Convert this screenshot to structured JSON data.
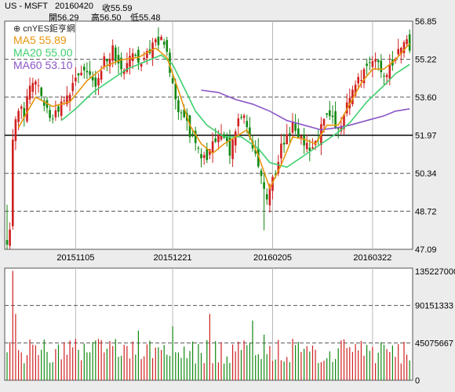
{
  "header": {
    "symbol": "US - MSFT",
    "date": "20160420",
    "close_label": "收55.59",
    "open_label": "開56.29",
    "high_label": "高56.50",
    "low_label": "低55.48"
  },
  "logo": "⊕ cnYES鉅亨網",
  "legend": [
    {
      "label": "MA5 55.89",
      "color": "#e8950c"
    },
    {
      "label": "MA20 55.00",
      "color": "#3ecf6e"
    },
    {
      "label": "MA60 53.10",
      "color": "#8a55c8"
    }
  ],
  "colors": {
    "up": "#d02020",
    "down": "#118811",
    "ma5": "#e8950c",
    "ma20": "#3ecf6e",
    "ma60": "#8a55c8"
  },
  "chart_data": [
    {
      "type": "candlestick",
      "title": "",
      "y_ticks": [
        "56.85",
        "55.22",
        "53.60",
        "51.97",
        "50.34",
        "48.72",
        "47.09"
      ],
      "ylim": [
        47.09,
        56.85
      ],
      "x_ticks": [
        "20151105",
        "20151221",
        "20160205",
        "20160322"
      ],
      "grid": true,
      "highlight_level": 51.97,
      "keypoints": {
        "close": [
          [
            0,
            47.2
          ],
          [
            1,
            47.9
          ],
          [
            2,
            51.8
          ],
          [
            3,
            52.6
          ],
          [
            4,
            53.2
          ],
          [
            6,
            52.9
          ],
          [
            8,
            54.0
          ],
          [
            10,
            54.3
          ],
          [
            12,
            53.6
          ],
          [
            14,
            53.2
          ],
          [
            16,
            52.6
          ],
          [
            19,
            53.3
          ],
          [
            22,
            53.9
          ],
          [
            25,
            54.6
          ],
          [
            28,
            54.8
          ],
          [
            31,
            54.0
          ],
          [
            34,
            55.2
          ],
          [
            37,
            55.6
          ],
          [
            40,
            54.7
          ],
          [
            43,
            55.4
          ],
          [
            46,
            55.1
          ],
          [
            49,
            55.4
          ],
          [
            52,
            55.9
          ],
          [
            54,
            56.0
          ],
          [
            56,
            55.4
          ],
          [
            58,
            54.2
          ],
          [
            60,
            53.1
          ],
          [
            62,
            52.7
          ],
          [
            64,
            52.1
          ],
          [
            66,
            51.6
          ],
          [
            68,
            51.2
          ],
          [
            70,
            50.8
          ],
          [
            72,
            51.5
          ],
          [
            74,
            52.1
          ],
          [
            76,
            51.8
          ],
          [
            78,
            51.2
          ],
          [
            80,
            52.3
          ],
          [
            82,
            52.9
          ],
          [
            84,
            52.4
          ],
          [
            86,
            51.6
          ],
          [
            88,
            50.5
          ],
          [
            90,
            49.6
          ],
          [
            91,
            49.3
          ],
          [
            92,
            49.9
          ],
          [
            94,
            50.4
          ],
          [
            96,
            51.4
          ],
          [
            98,
            51.9
          ],
          [
            100,
            52.4
          ],
          [
            102,
            52.1
          ],
          [
            104,
            51.6
          ],
          [
            106,
            51.3
          ],
          [
            108,
            51.6
          ],
          [
            110,
            52.3
          ],
          [
            112,
            52.9
          ],
          [
            114,
            52.6
          ],
          [
            116,
            52.1
          ],
          [
            118,
            52.9
          ],
          [
            120,
            53.7
          ],
          [
            122,
            54.2
          ],
          [
            124,
            54.5
          ],
          [
            126,
            54.9
          ],
          [
            128,
            55.2
          ],
          [
            130,
            55.0
          ],
          [
            132,
            54.7
          ],
          [
            134,
            54.8
          ],
          [
            136,
            55.3
          ],
          [
            138,
            55.9
          ],
          [
            140,
            56.29
          ],
          [
            141,
            55.59
          ]
        ],
        "ma5": [
          [
            4,
            52.3
          ],
          [
            10,
            53.6
          ],
          [
            16,
            53.2
          ],
          [
            22,
            53.4
          ],
          [
            28,
            54.3
          ],
          [
            34,
            54.9
          ],
          [
            40,
            55.2
          ],
          [
            46,
            55.3
          ],
          [
            52,
            55.7
          ],
          [
            56,
            55.3
          ],
          [
            60,
            53.9
          ],
          [
            64,
            52.4
          ],
          [
            68,
            51.6
          ],
          [
            72,
            51.2
          ],
          [
            76,
            51.6
          ],
          [
            80,
            51.9
          ],
          [
            84,
            52.2
          ],
          [
            88,
            51.1
          ],
          [
            92,
            49.7
          ],
          [
            96,
            50.7
          ],
          [
            100,
            51.9
          ],
          [
            104,
            51.8
          ],
          [
            108,
            51.6
          ],
          [
            112,
            52.4
          ],
          [
            116,
            52.4
          ],
          [
            120,
            53.3
          ],
          [
            124,
            54.2
          ],
          [
            128,
            54.8
          ],
          [
            132,
            54.8
          ],
          [
            136,
            55.2
          ],
          [
            141,
            55.89
          ]
        ],
        "ma20": [
          [
            19,
            52.6
          ],
          [
            24,
            53.1
          ],
          [
            30,
            53.8
          ],
          [
            36,
            54.3
          ],
          [
            42,
            54.8
          ],
          [
            48,
            55.1
          ],
          [
            54,
            55.4
          ],
          [
            58,
            55.0
          ],
          [
            62,
            54.0
          ],
          [
            66,
            53.0
          ],
          [
            70,
            52.4
          ],
          [
            76,
            51.9
          ],
          [
            82,
            51.9
          ],
          [
            88,
            51.4
          ],
          [
            92,
            50.8
          ],
          [
            98,
            50.6
          ],
          [
            104,
            51.1
          ],
          [
            110,
            51.6
          ],
          [
            116,
            52.1
          ],
          [
            120,
            52.5
          ],
          [
            126,
            53.4
          ],
          [
            132,
            54.1
          ],
          [
            136,
            54.6
          ],
          [
            141,
            55.0
          ]
        ],
        "ma60": [
          [
            68,
            53.9
          ],
          [
            74,
            53.8
          ],
          [
            80,
            53.5
          ],
          [
            86,
            53.3
          ],
          [
            92,
            53.0
          ],
          [
            98,
            52.6
          ],
          [
            104,
            52.4
          ],
          [
            110,
            52.2
          ],
          [
            116,
            52.3
          ],
          [
            120,
            52.4
          ],
          [
            126,
            52.6
          ],
          [
            132,
            52.8
          ],
          [
            136,
            53.0
          ],
          [
            141,
            53.1
          ]
        ]
      }
    },
    {
      "type": "bar",
      "title": "",
      "y_ticks": [
        "135227000",
        "90151333",
        "45075667",
        "0"
      ],
      "ylim": [
        0,
        135227000
      ],
      "grid": true
    }
  ]
}
